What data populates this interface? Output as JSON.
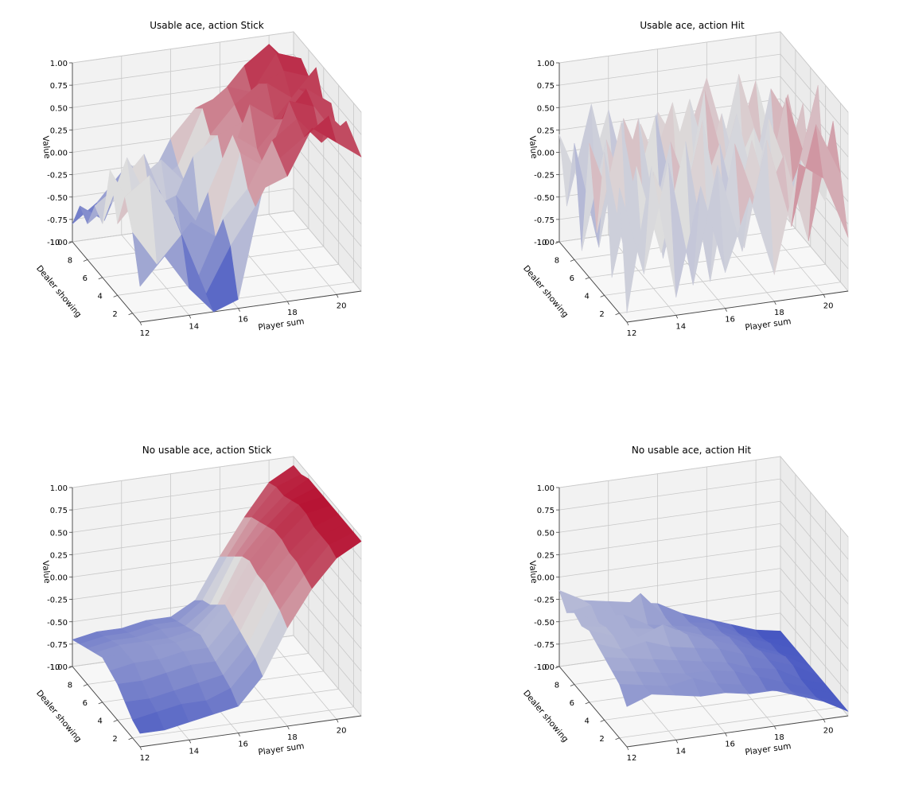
{
  "chart_data": [
    {
      "type": "surface",
      "title": "Usable ace, action Stick",
      "xlabel": "Player sum",
      "ylabel": "Dealer showing",
      "zlabel": "Value",
      "x": [
        12,
        13,
        14,
        15,
        16,
        17,
        18,
        19,
        20,
        21
      ],
      "y": [
        1,
        2,
        3,
        4,
        5,
        6,
        7,
        8,
        9,
        10
      ],
      "xticks": [
        12,
        14,
        16,
        18,
        20
      ],
      "yticks": [
        2,
        4,
        6,
        8,
        10
      ],
      "zticks": [
        "-1.00",
        "-0.75",
        "-0.50",
        "-0.25",
        "0.00",
        "0.25",
        "0.50",
        "0.75",
        "1.00"
      ],
      "zlim": [
        -1,
        1
      ],
      "z": [
        [
          -0.6,
          -0.3,
          -0.7,
          -1.0,
          -0.9,
          0.3,
          0.4,
          0.9,
          0.7,
          0.5
        ],
        [
          -0.1,
          -0.5,
          -0.2,
          -0.9,
          -0.4,
          0.0,
          0.5,
          0.7,
          0.9,
          0.6
        ],
        [
          0.2,
          0.4,
          -0.1,
          -0.8,
          -0.2,
          0.1,
          0.6,
          0.8,
          0.5,
          0.7
        ],
        [
          -0.2,
          0.1,
          -0.6,
          -0.3,
          -0.5,
          0.4,
          0.2,
          0.9,
          0.8,
          0.4
        ],
        [
          0.3,
          -0.2,
          0.0,
          -0.7,
          -0.1,
          0.5,
          0.3,
          0.6,
          0.9,
          0.7
        ],
        [
          -0.4,
          0.3,
          -0.3,
          -0.2,
          -0.6,
          0.0,
          0.7,
          0.5,
          0.8,
          0.6
        ],
        [
          -0.3,
          -0.1,
          0.2,
          -0.5,
          0.1,
          0.3,
          0.4,
          0.8,
          0.6,
          0.9
        ],
        [
          -0.6,
          -0.4,
          -0.2,
          0.0,
          -0.3,
          0.2,
          0.5,
          0.7,
          0.8,
          0.7
        ],
        [
          -0.5,
          -0.7,
          -0.1,
          -0.4,
          -0.2,
          0.4,
          0.6,
          0.5,
          0.9,
          0.8
        ],
        [
          -0.8,
          -0.6,
          -0.3,
          -0.5,
          0.0,
          0.3,
          0.4,
          0.7,
          0.9,
          0.6
        ]
      ]
    },
    {
      "type": "surface",
      "title": "Usable ace, action Hit",
      "xlabel": "Player sum",
      "ylabel": "Dealer showing",
      "zlabel": "Value",
      "x": [
        12,
        13,
        14,
        15,
        16,
        17,
        18,
        19,
        20,
        21
      ],
      "y": [
        1,
        2,
        3,
        4,
        5,
        6,
        7,
        8,
        9,
        10
      ],
      "xticks": [
        12,
        14,
        16,
        18,
        20
      ],
      "yticks": [
        2,
        4,
        6,
        8,
        10
      ],
      "zticks": [
        "-1.00",
        "-0.75",
        "-0.50",
        "-0.25",
        "0.00",
        "0.25",
        "0.50",
        "0.75",
        "1.00"
      ],
      "zlim": [
        -1,
        1
      ],
      "z": [
        [
          -0.9,
          0.7,
          -0.8,
          0.4,
          -0.6,
          0.2,
          -0.7,
          0.5,
          0.3,
          -0.4
        ],
        [
          0.4,
          -0.6,
          0.6,
          -0.8,
          0.5,
          -0.5,
          0.7,
          -0.3,
          0.8,
          0.2
        ],
        [
          -0.7,
          0.5,
          -0.5,
          0.7,
          -0.9,
          0.6,
          -0.2,
          0.4,
          -0.6,
          0.7
        ],
        [
          0.6,
          -0.8,
          0.3,
          -0.4,
          0.8,
          -0.7,
          0.5,
          -0.5,
          0.2,
          -0.3
        ],
        [
          -0.4,
          0.8,
          -0.7,
          0.5,
          -0.3,
          0.4,
          -0.8,
          0.6,
          -0.2,
          0.9
        ],
        [
          0.5,
          -0.3,
          0.7,
          -0.9,
          0.2,
          -0.4,
          0.6,
          -0.6,
          0.7,
          -0.2
        ],
        [
          -0.8,
          0.4,
          -0.4,
          0.6,
          -0.7,
          0.8,
          -0.3,
          0.3,
          -0.5,
          0.5
        ],
        [
          0.3,
          -0.9,
          0.5,
          -0.2,
          0.6,
          -0.6,
          0.4,
          -0.7,
          0.6,
          0.1
        ],
        [
          -0.5,
          0.6,
          -0.6,
          0.3,
          -0.4,
          0.5,
          -0.5,
          0.7,
          -0.3,
          0.4
        ],
        [
          0.2,
          -0.5,
          0.4,
          -0.7,
          0.3,
          -0.2,
          0.6,
          -0.4,
          0.5,
          -0.6
        ]
      ]
    },
    {
      "type": "surface",
      "title": "No usable ace, action Stick",
      "xlabel": "Player sum",
      "ylabel": "Dealer showing",
      "zlabel": "Value",
      "x": [
        12,
        13,
        14,
        15,
        16,
        17,
        18,
        19,
        20,
        21
      ],
      "y": [
        1,
        2,
        3,
        4,
        5,
        6,
        7,
        8,
        9,
        10
      ],
      "xticks": [
        12,
        14,
        16,
        18,
        20
      ],
      "yticks": [
        2,
        4,
        6,
        8,
        10
      ],
      "zticks": [
        "-1.00",
        "-0.75",
        "-0.50",
        "-0.25",
        "0.00",
        "0.25",
        "0.50",
        "0.75",
        "1.00"
      ],
      "zlim": [
        -1,
        1
      ],
      "z": [
        [
          -0.85,
          -0.85,
          -0.8,
          -0.75,
          -0.7,
          -0.4,
          0.1,
          0.5,
          0.8,
          0.95
        ],
        [
          -0.8,
          -0.75,
          -0.7,
          -0.7,
          -0.6,
          -0.3,
          0.2,
          0.55,
          0.85,
          0.95
        ],
        [
          -0.7,
          -0.7,
          -0.65,
          -0.6,
          -0.55,
          -0.25,
          0.25,
          0.6,
          0.85,
          0.95
        ],
        [
          -0.6,
          -0.6,
          -0.55,
          -0.5,
          -0.5,
          -0.2,
          0.3,
          0.6,
          0.85,
          0.95
        ],
        [
          -0.55,
          -0.5,
          -0.5,
          -0.45,
          -0.45,
          -0.15,
          0.3,
          0.65,
          0.9,
          0.95
        ],
        [
          -0.5,
          -0.5,
          -0.45,
          -0.45,
          -0.4,
          -0.1,
          0.35,
          0.65,
          0.9,
          0.95
        ],
        [
          -0.55,
          -0.5,
          -0.5,
          -0.5,
          -0.45,
          -0.2,
          0.3,
          0.6,
          0.85,
          0.95
        ],
        [
          -0.6,
          -0.55,
          -0.55,
          -0.5,
          -0.5,
          -0.3,
          0.2,
          0.55,
          0.8,
          0.95
        ],
        [
          -0.65,
          -0.6,
          -0.6,
          -0.55,
          -0.55,
          -0.35,
          0.1,
          0.5,
          0.8,
          0.9
        ],
        [
          -0.7,
          -0.65,
          -0.65,
          -0.6,
          -0.6,
          -0.45,
          0.0,
          0.4,
          0.75,
          0.9
        ]
      ]
    },
    {
      "type": "surface",
      "title": "No usable ace, action Hit",
      "xlabel": "Player sum",
      "ylabel": "Dealer showing",
      "zlabel": "Value",
      "x": [
        12,
        13,
        14,
        15,
        16,
        17,
        18,
        19,
        20,
        21
      ],
      "y": [
        1,
        2,
        3,
        4,
        5,
        6,
        7,
        8,
        9,
        10
      ],
      "xticks": [
        12,
        14,
        16,
        18,
        20
      ],
      "yticks": [
        2,
        4,
        6,
        8,
        10
      ],
      "zticks": [
        "-1.00",
        "-0.75",
        "-0.50",
        "-0.25",
        "0.00",
        "0.25",
        "0.50",
        "0.75",
        "1.00"
      ],
      "zlim": [
        -1,
        1
      ],
      "z": [
        [
          -0.55,
          -0.45,
          -0.5,
          -0.55,
          -0.55,
          -0.6,
          -0.6,
          -0.7,
          -0.8,
          -0.95
        ],
        [
          -0.4,
          -0.45,
          -0.5,
          -0.45,
          -0.55,
          -0.6,
          -0.7,
          -0.75,
          -0.85,
          -0.95
        ],
        [
          -0.35,
          -0.4,
          -0.45,
          -0.5,
          -0.5,
          -0.55,
          -0.65,
          -0.75,
          -0.85,
          -0.95
        ],
        [
          -0.3,
          -0.35,
          -0.4,
          -0.45,
          -0.5,
          -0.55,
          -0.65,
          -0.7,
          -0.85,
          -0.95
        ],
        [
          -0.25,
          -0.35,
          -0.3,
          -0.4,
          -0.45,
          -0.5,
          -0.6,
          -0.7,
          -0.8,
          -0.95
        ],
        [
          -0.2,
          -0.3,
          -0.35,
          -0.25,
          -0.4,
          -0.5,
          -0.6,
          -0.7,
          -0.8,
          -0.95
        ],
        [
          -0.25,
          -0.3,
          -0.35,
          -0.4,
          -0.45,
          -0.55,
          -0.6,
          -0.75,
          -0.85,
          -0.95
        ],
        [
          -0.2,
          -0.35,
          -0.3,
          -0.45,
          -0.5,
          -0.55,
          -0.65,
          -0.75,
          -0.85,
          -0.95
        ],
        [
          -0.3,
          -0.25,
          -0.4,
          -0.2,
          -0.5,
          -0.6,
          -0.65,
          -0.8,
          -0.9,
          -0.95
        ],
        [
          -0.15,
          -0.3,
          -0.35,
          -0.4,
          -0.45,
          -0.6,
          -0.7,
          -0.8,
          -0.9,
          -0.95
        ]
      ]
    }
  ],
  "colormap": {
    "name": "coolwarm",
    "low": "#3b4cc0",
    "mid": "#dddddd",
    "high": "#b40426"
  }
}
